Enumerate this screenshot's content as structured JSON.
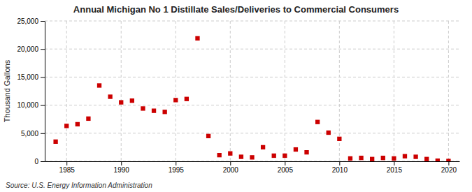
{
  "chart_data": {
    "type": "scatter",
    "title": "Annual Michigan No 1 Distillate Sales/Deliveries to Commercial Consumers",
    "ylabel": "Thousand Gallons",
    "source": "Source: U.S. Energy Information Administration",
    "color": "#cc0000",
    "marker": "square",
    "grid": true,
    "xlim": [
      1983,
      2021
    ],
    "ylim": [
      0,
      25000
    ],
    "xticks": [
      1985,
      1990,
      1995,
      2000,
      2005,
      2010,
      2015,
      2020
    ],
    "yticks": [
      0,
      {
        "value": 5000,
        "label": "5,000"
      },
      {
        "value": 10000,
        "label": "10,000"
      },
      {
        "value": 15000,
        "label": "15,000"
      },
      {
        "value": 20000,
        "label": "20,000"
      },
      {
        "value": 25000,
        "label": "25,000"
      }
    ],
    "x": [
      1984,
      1985,
      1986,
      1987,
      1988,
      1989,
      1990,
      1991,
      1992,
      1993,
      1994,
      1995,
      1996,
      1997,
      1998,
      1999,
      2000,
      2001,
      2002,
      2003,
      2004,
      2005,
      2006,
      2007,
      2008,
      2009,
      2010,
      2011,
      2012,
      2013,
      2014,
      2015,
      2016,
      2017,
      2018,
      2019,
      2020
    ],
    "values": [
      3500,
      6300,
      6600,
      7600,
      13500,
      11500,
      10500,
      10800,
      9400,
      9000,
      8800,
      10900,
      11100,
      21900,
      4500,
      1100,
      1400,
      800,
      700,
      2500,
      1000,
      1000,
      2100,
      1600,
      7000,
      5100,
      4000,
      500,
      600,
      400,
      600,
      500,
      900,
      800,
      400,
      100,
      50
    ]
  }
}
